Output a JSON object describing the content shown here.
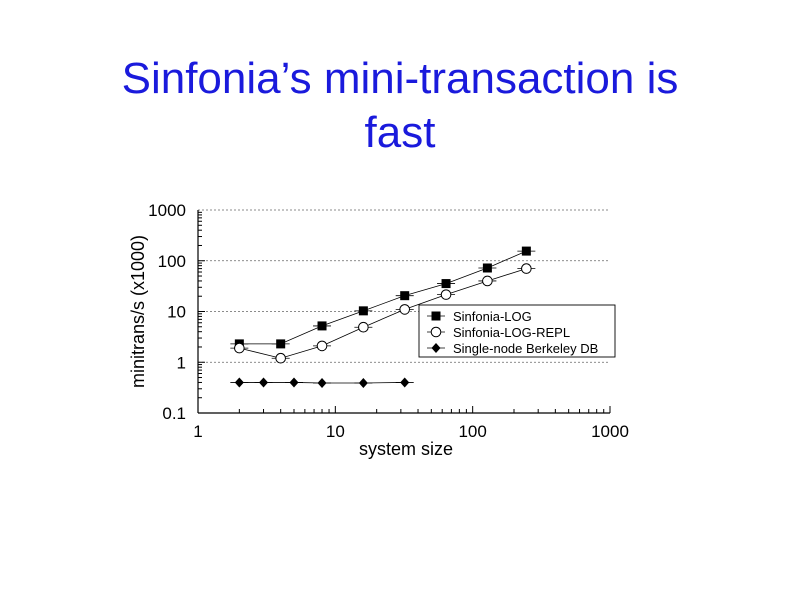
{
  "slide": {
    "title_line1": "Sinfonia’s mini-transaction is",
    "title_line2": "fast"
  },
  "chart_data": {
    "type": "line",
    "xlabel": "system size",
    "ylabel": "minitrans/s (x1000)",
    "xscale": "log",
    "yscale": "log",
    "xlim": [
      1,
      1000
    ],
    "ylim": [
      0.1,
      1000
    ],
    "xticks": [
      "1",
      "10",
      "100",
      "1000"
    ],
    "yticks": [
      "0.1",
      "1",
      "10",
      "100",
      "1000"
    ],
    "grid": "horizontal dashed",
    "legend_position": "middle-right",
    "series": [
      {
        "name": "Sinfonia-LOG",
        "marker": "filled-square",
        "x": [
          2,
          4,
          8,
          16,
          32,
          64,
          128,
          246
        ],
        "y": [
          2.3,
          2.3,
          5.2,
          10.3,
          20.5,
          35.5,
          72,
          155
        ]
      },
      {
        "name": "Sinfonia-LOG-REPL",
        "marker": "open-circle",
        "x": [
          2,
          4,
          8,
          16,
          32,
          64,
          128,
          246
        ],
        "y": [
          1.9,
          1.2,
          2.1,
          4.9,
          11,
          21.5,
          40,
          70
        ]
      },
      {
        "name": "Single-node Berkeley DB",
        "marker": "filled-diamond",
        "x": [
          2,
          3,
          5,
          8,
          16,
          32
        ],
        "y": [
          0.4,
          0.4,
          0.4,
          0.39,
          0.39,
          0.4
        ]
      }
    ]
  }
}
